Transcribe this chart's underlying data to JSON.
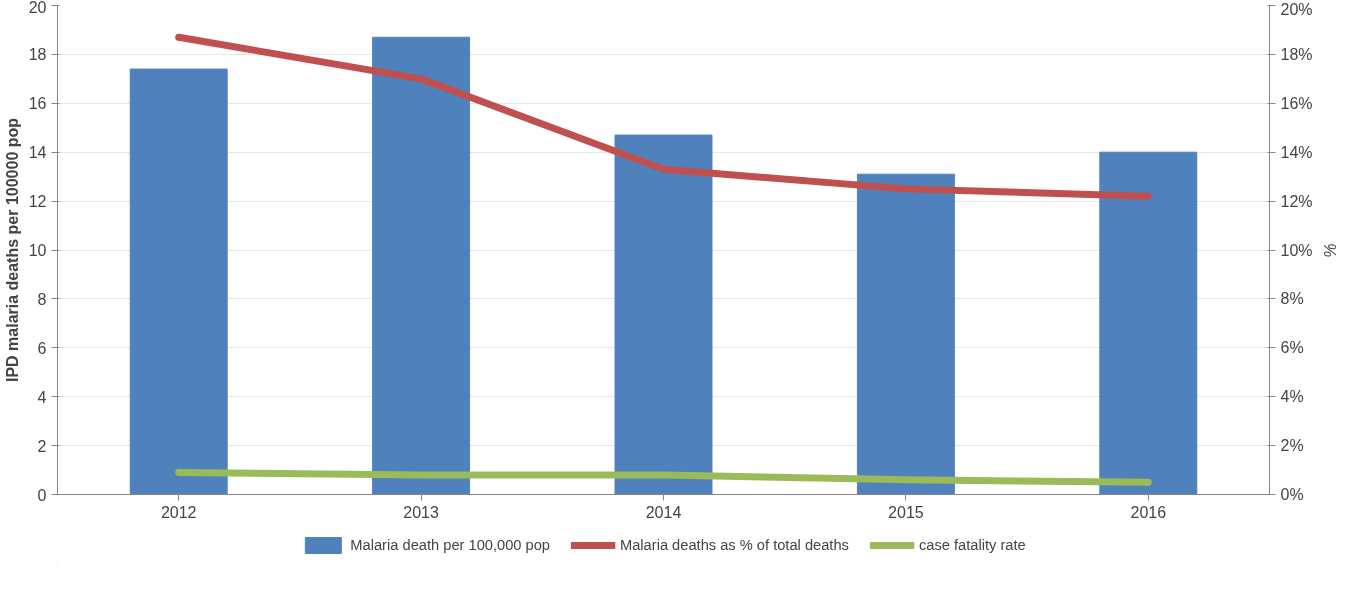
{
  "chart_data": {
    "type": "bar",
    "ylabel": "IPD malaria deaths per 100000 pop",
    "y2label": "%",
    "categories": [
      "2012",
      "2013",
      "2014",
      "2015",
      "2016"
    ],
    "series": [
      {
        "name": "Malaria death per 100,000 pop",
        "color": "#4f81bd",
        "values": [
          17.4,
          18.7,
          14.7,
          13.1,
          14.0
        ]
      },
      {
        "name": "Malaria deaths as % of total deaths",
        "type": "line",
        "axis": "y2",
        "color": "#c0504d",
        "values": [
          18.7,
          17.0,
          13.3,
          12.5,
          12.2
        ]
      },
      {
        "name": "case fatality rate",
        "type": "line",
        "axis": "y2",
        "color": "#9bbb59",
        "values": [
          0.9,
          0.8,
          0.8,
          0.6,
          0.5
        ]
      }
    ],
    "ylim": [
      0,
      20
    ],
    "yticks": [
      0,
      2,
      4,
      6,
      8,
      10,
      12,
      14,
      16,
      18,
      20
    ],
    "y2lim": [
      0,
      20
    ],
    "y2ticks": [
      {
        "value": 0,
        "label": "0%"
      },
      {
        "value": 2,
        "label": "2%"
      },
      {
        "value": 4,
        "label": "4%"
      },
      {
        "value": 6,
        "label": "6%"
      },
      {
        "value": 8,
        "label": "8%"
      },
      {
        "value": 10,
        "label": "10%"
      },
      {
        "value": 12,
        "label": "12%"
      },
      {
        "value": 14,
        "label": "14%"
      },
      {
        "value": 16,
        "label": "16%"
      },
      {
        "value": 18,
        "label": "18%"
      },
      {
        "value": 20,
        "label": "20%"
      }
    ],
    "grid": "y",
    "legend": "bottom"
  }
}
